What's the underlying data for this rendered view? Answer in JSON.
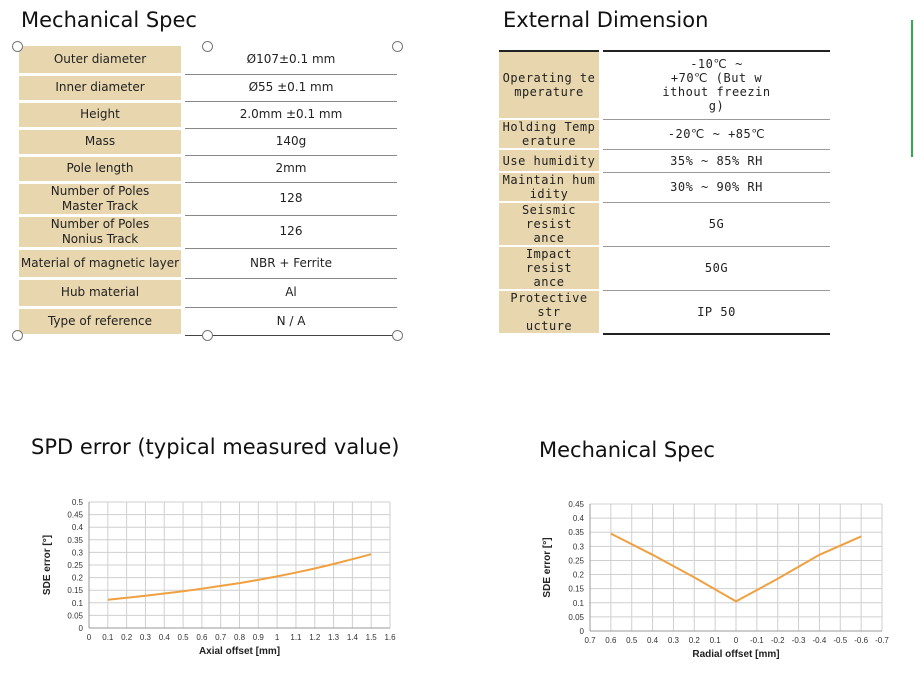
{
  "mech": {
    "title": "Mechanical Spec",
    "rows": [
      {
        "label": "Outer diameter",
        "value": "Ø107±0.1 mm"
      },
      {
        "label": "Inner diameter",
        "value": "Ø55 ±0.1 mm"
      },
      {
        "label": "Height",
        "value": "2.0mm ±0.1 mm"
      },
      {
        "label": "Mass",
        "value": "140g"
      },
      {
        "label": "Pole length",
        "value": "2mm"
      },
      {
        "label": "Number of Poles\nMaster Track",
        "value": "128"
      },
      {
        "label": "Number of Poles\nNonius Track",
        "value": "126"
      },
      {
        "label": "Material of magnetic layer",
        "value": "NBR + Ferrite"
      },
      {
        "label": "Hub material",
        "value": "Al"
      },
      {
        "label": "Type of reference",
        "value": "N / A"
      }
    ]
  },
  "ext": {
    "title": "External Dimension",
    "rows": [
      {
        "label": "Operating te\nmperature",
        "value": "-10℃ ~\n+70℃ (But w\nithout freezin\ng)"
      },
      {
        "label": "Holding Temp\nerature",
        "value": "-20℃ ~ +85℃"
      },
      {
        "label": "Use humidity",
        "value": "35% ~ 85% RH"
      },
      {
        "label": "Maintain hum\nidity",
        "value": "30% ~ 90% RH"
      },
      {
        "label": "Seismic resist\nance",
        "value": "5G"
      },
      {
        "label": "Impact resist\nance",
        "value": "50G"
      },
      {
        "label": "Protective str\nucture",
        "value": "IP 50"
      }
    ]
  },
  "chart_data": [
    {
      "type": "line",
      "title": "SPD error (typical measured value)",
      "xlabel": "Axial offset [mm]",
      "ylabel": "SDE error [°]",
      "x": [
        0.1,
        0.2,
        0.3,
        0.4,
        0.5,
        0.6,
        0.7,
        0.8,
        0.9,
        1.0,
        1.1,
        1.2,
        1.3,
        1.4,
        1.5
      ],
      "series": [
        {
          "values": [
            0.112,
            0.12,
            0.128,
            0.137,
            0.146,
            0.156,
            0.167,
            0.178,
            0.191,
            0.205,
            0.22,
            0.236,
            0.254,
            0.273,
            0.293
          ]
        }
      ],
      "xticks": [
        "0",
        "0.1",
        "0.2",
        "0.3",
        "0.4",
        "0.5",
        "0.6",
        "0.7",
        "0.8",
        "0.9",
        "1",
        "1.1",
        "1.2",
        "1.3",
        "1.4",
        "1.5",
        "1.6"
      ],
      "yticks": [
        "0",
        "0.05",
        "0.1",
        "0.15",
        "0.2",
        "0.25",
        "0.3",
        "0.35",
        "0.4",
        "0.45",
        "0.5"
      ],
      "xlim": [
        0,
        1.6
      ],
      "ylim": [
        0,
        0.5
      ],
      "grid": true,
      "color": "#f0a040"
    },
    {
      "type": "line",
      "title": "Mechanical Spec",
      "xlabel": "Radial offset [mm]",
      "ylabel": "SDE error [°]",
      "x": [
        0.6,
        0.4,
        0.2,
        0.0,
        -0.2,
        -0.4,
        -0.6
      ],
      "series": [
        {
          "values": [
            0.345,
            0.27,
            0.19,
            0.105,
            0.185,
            0.27,
            0.335
          ]
        }
      ],
      "xticks": [
        "0.7",
        "0.6",
        "0.5",
        "0.4",
        "0.3",
        "0.2",
        "0.1",
        "0",
        "-0.1",
        "-0.2",
        "-0.3",
        "-0.4",
        "-0.5",
        "-0.6",
        "-0.7"
      ],
      "yticks": [
        "0",
        "0.05",
        "0.1",
        "0.15",
        "0.2",
        "0.25",
        "0.3",
        "0.35",
        "0.4",
        "0.45"
      ],
      "xlim": [
        0.7,
        -0.7
      ],
      "ylim": [
        0,
        0.45
      ],
      "grid": true,
      "color": "#f0a040"
    }
  ]
}
